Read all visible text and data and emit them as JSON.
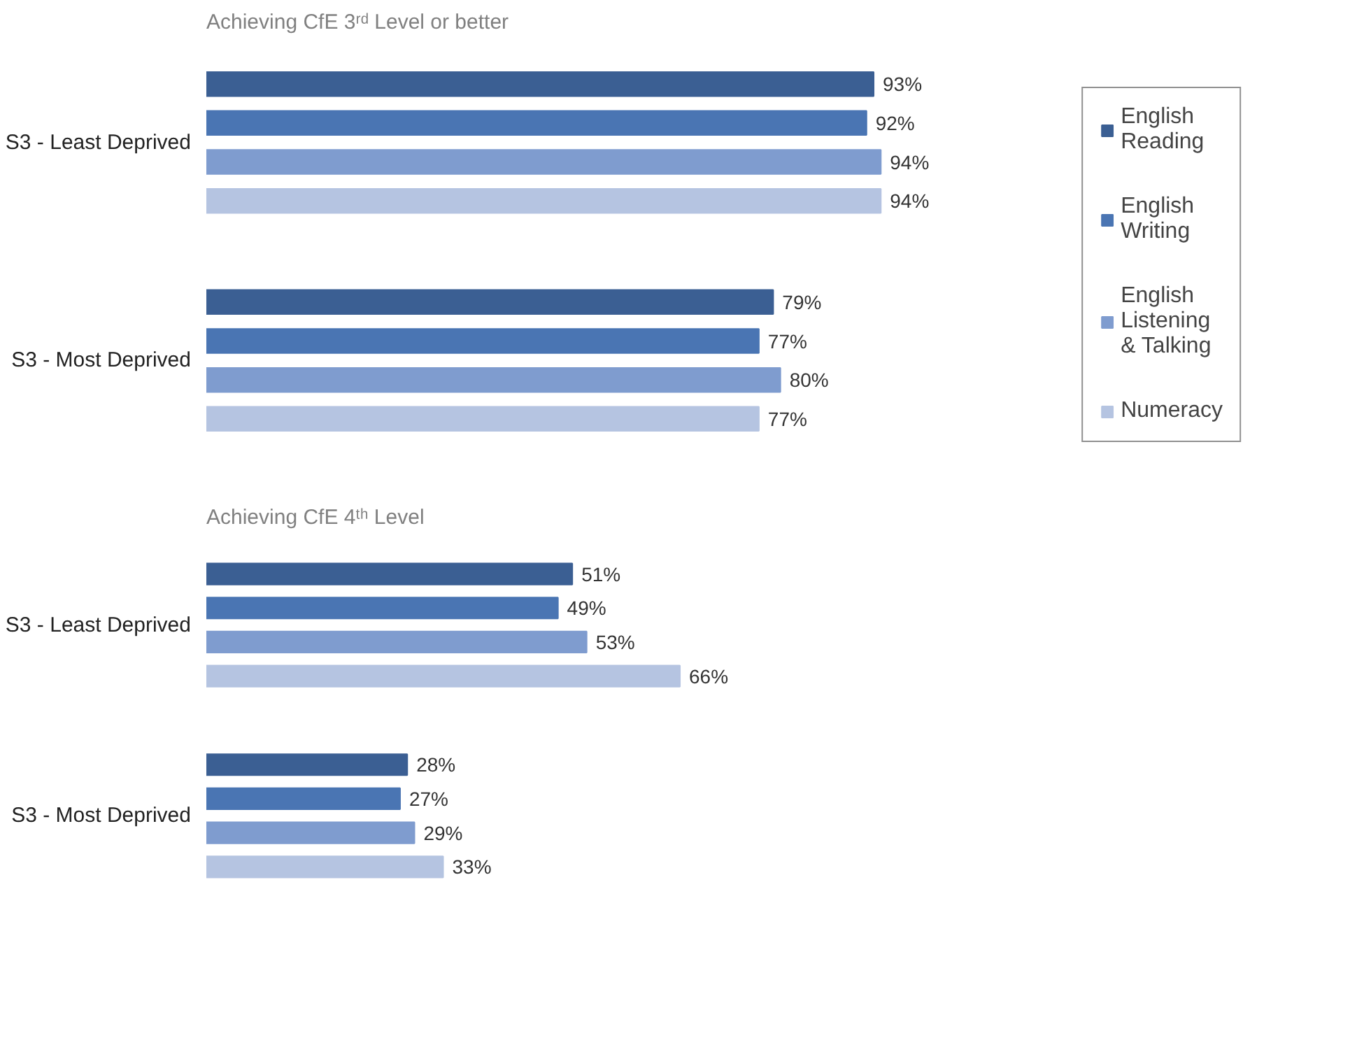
{
  "chart_data": [
    {
      "type": "bar",
      "orientation": "horizontal",
      "title": "Achieving CfE 3ʳᵈ Level or better",
      "categories": [
        "S3 - Least Deprived",
        "S3 - Most Deprived"
      ],
      "legend": "right",
      "grid": false,
      "series": [
        {
          "name": "English Reading",
          "color": "#3b5f93",
          "values": [
            93,
            79
          ],
          "value_labels": [
            "93%",
            "79%"
          ]
        },
        {
          "name": "English Writing",
          "color": "#4a75b3",
          "values": [
            92,
            77
          ],
          "value_labels": [
            "92%",
            "77%"
          ]
        },
        {
          "name": "English Listening & Talking",
          "color": "#7f9ccf",
          "values": [
            94,
            80
          ],
          "value_labels": [
            "94%",
            "80%"
          ]
        },
        {
          "name": "Numeracy",
          "color": "#b5c4e1",
          "values": [
            94,
            77
          ],
          "value_labels": [
            "94%",
            "77%"
          ]
        }
      ]
    },
    {
      "type": "bar",
      "orientation": "horizontal",
      "title": "Achieving CfE 4ᵗʰ Level",
      "categories": [
        "S3 - Least Deprived",
        "S3 - Most Deprived"
      ],
      "grid": false,
      "series": [
        {
          "color": "#3b5f93",
          "values": [
            51,
            28
          ],
          "value_labels": [
            "51%",
            "28%"
          ]
        },
        {
          "color": "#4a75b3",
          "values": [
            49,
            27
          ],
          "value_labels": [
            "49%",
            "27%"
          ]
        },
        {
          "color": "#7f9ccf",
          "values": [
            53,
            29
          ],
          "value_labels": [
            "53%",
            "29%"
          ]
        },
        {
          "color": "#b5c4e1",
          "values": [
            66,
            33
          ],
          "value_labels": [
            "66%",
            "33%"
          ]
        }
      ]
    }
  ]
}
